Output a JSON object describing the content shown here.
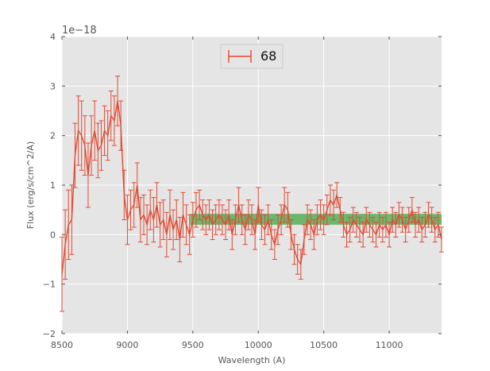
{
  "chart_data": {
    "type": "line",
    "xlabel": "Wavelength (A)",
    "ylabel": "Flux (erg/s/cm^2/A)",
    "y_offset_label": "1e−18",
    "xlim": [
      8500,
      11400
    ],
    "ylim": [
      -2,
      4
    ],
    "x_ticks": [
      8500,
      9000,
      9500,
      10000,
      10500,
      11000
    ],
    "y_ticks": [
      -2,
      -1,
      0,
      1,
      2,
      3,
      4
    ],
    "x_tick_labels": [
      "8500",
      "9000",
      "9500",
      "10000",
      "10500",
      "11000"
    ],
    "y_tick_labels": [
      "−2",
      "−1",
      "0",
      "1",
      "2",
      "3",
      "4"
    ],
    "grid": true,
    "background": "#e5e5e5",
    "legend_position": "top-center",
    "band": {
      "x": [
        9480,
        11400
      ],
      "y": [
        0.2,
        0.42
      ],
      "color": "#4dab4d"
    },
    "series": [
      {
        "name": "68",
        "color": "#e24a33",
        "x": [
          8500,
          8525,
          8550,
          8575,
          8600,
          8625,
          8650,
          8675,
          8700,
          8725,
          8750,
          8775,
          8800,
          8825,
          8850,
          8875,
          8900,
          8925,
          8950,
          8975,
          9000,
          9025,
          9050,
          9075,
          9100,
          9125,
          9150,
          9175,
          9200,
          9225,
          9250,
          9275,
          9300,
          9325,
          9350,
          9375,
          9400,
          9425,
          9450,
          9475,
          9500,
          9525,
          9550,
          9575,
          9600,
          9625,
          9650,
          9675,
          9700,
          9725,
          9750,
          9775,
          9800,
          9825,
          9850,
          9875,
          9900,
          9925,
          9950,
          9975,
          10000,
          10025,
          10050,
          10075,
          10100,
          10125,
          10150,
          10175,
          10200,
          10225,
          10250,
          10275,
          10300,
          10325,
          10350,
          10375,
          10400,
          10425,
          10450,
          10475,
          10500,
          10525,
          10550,
          10575,
          10600,
          10625,
          10650,
          10675,
          10700,
          10725,
          10750,
          10775,
          10800,
          10825,
          10850,
          10875,
          10900,
          10925,
          10950,
          10975,
          11000,
          11025,
          11050,
          11075,
          11100,
          11125,
          11150,
          11175,
          11200,
          11225,
          11250,
          11275,
          11300,
          11325,
          11350,
          11375,
          11400
        ],
        "y": [
          -0.8,
          -0.2,
          0.2,
          0.3,
          1.6,
          2.1,
          2.0,
          1.8,
          1.2,
          1.8,
          2.1,
          1.7,
          1.8,
          2.1,
          2.0,
          2.4,
          2.3,
          2.7,
          2.2,
          0.8,
          0.3,
          0.5,
          0.6,
          1.0,
          0.3,
          0.4,
          0.2,
          0.5,
          0.3,
          0.6,
          0.2,
          0.3,
          0.0,
          0.4,
          0.1,
          0.3,
          -0.1,
          0.4,
          0.2,
          0.0,
          0.3,
          0.5,
          0.6,
          0.4,
          0.3,
          0.4,
          0.2,
          0.3,
          0.4,
          0.3,
          0.2,
          0.4,
          0.0,
          0.3,
          0.6,
          0.3,
          0.1,
          0.4,
          0.3,
          0.0,
          0.6,
          0.2,
          0.1,
          0.3,
          0.0,
          -0.2,
          0.1,
          0.3,
          0.6,
          0.5,
          0.0,
          -0.3,
          -0.5,
          -0.6,
          -0.1,
          0.3,
          0.2,
          0.0,
          0.3,
          0.4,
          0.3,
          0.5,
          0.7,
          0.6,
          0.8,
          0.5,
          0.2,
          0.0,
          0.1,
          0.3,
          0.2,
          0.1,
          0.0,
          0.3,
          0.2,
          0.1,
          0.0,
          0.2,
          0.1,
          0.2,
          0.0,
          0.3,
          0.2,
          0.4,
          0.3,
          0.1,
          0.3,
          0.5,
          0.2,
          0.3,
          0.1,
          0.2,
          0.4,
          0.3,
          0.1,
          0.2,
          -0.1
        ],
        "yerr": [
          0.75,
          0.7,
          0.7,
          0.7,
          0.65,
          0.7,
          0.7,
          0.6,
          0.65,
          0.6,
          0.6,
          0.55,
          0.5,
          0.5,
          0.5,
          0.5,
          0.5,
          0.5,
          0.5,
          0.5,
          0.5,
          0.4,
          0.45,
          0.45,
          0.45,
          0.4,
          0.4,
          0.4,
          0.45,
          0.45,
          0.45,
          0.4,
          0.45,
          0.5,
          0.4,
          0.4,
          0.45,
          0.45,
          0.4,
          0.4,
          0.35,
          0.35,
          0.3,
          0.3,
          0.3,
          0.3,
          0.3,
          0.3,
          0.3,
          0.3,
          0.3,
          0.3,
          0.3,
          0.3,
          0.35,
          0.3,
          0.3,
          0.3,
          0.3,
          0.3,
          0.35,
          0.3,
          0.3,
          0.3,
          0.3,
          0.3,
          0.3,
          0.3,
          0.35,
          0.35,
          0.3,
          0.3,
          0.3,
          0.3,
          0.3,
          0.3,
          0.3,
          0.3,
          0.3,
          0.3,
          0.3,
          0.3,
          0.3,
          0.3,
          0.25,
          0.25,
          0.25,
          0.25,
          0.25,
          0.25,
          0.25,
          0.25,
          0.25,
          0.25,
          0.25,
          0.25,
          0.25,
          0.25,
          0.25,
          0.25,
          0.25,
          0.25,
          0.25,
          0.25,
          0.25,
          0.25,
          0.25,
          0.25,
          0.25,
          0.25,
          0.25,
          0.25,
          0.25,
          0.25,
          0.25,
          0.25,
          0.25
        ]
      }
    ]
  }
}
